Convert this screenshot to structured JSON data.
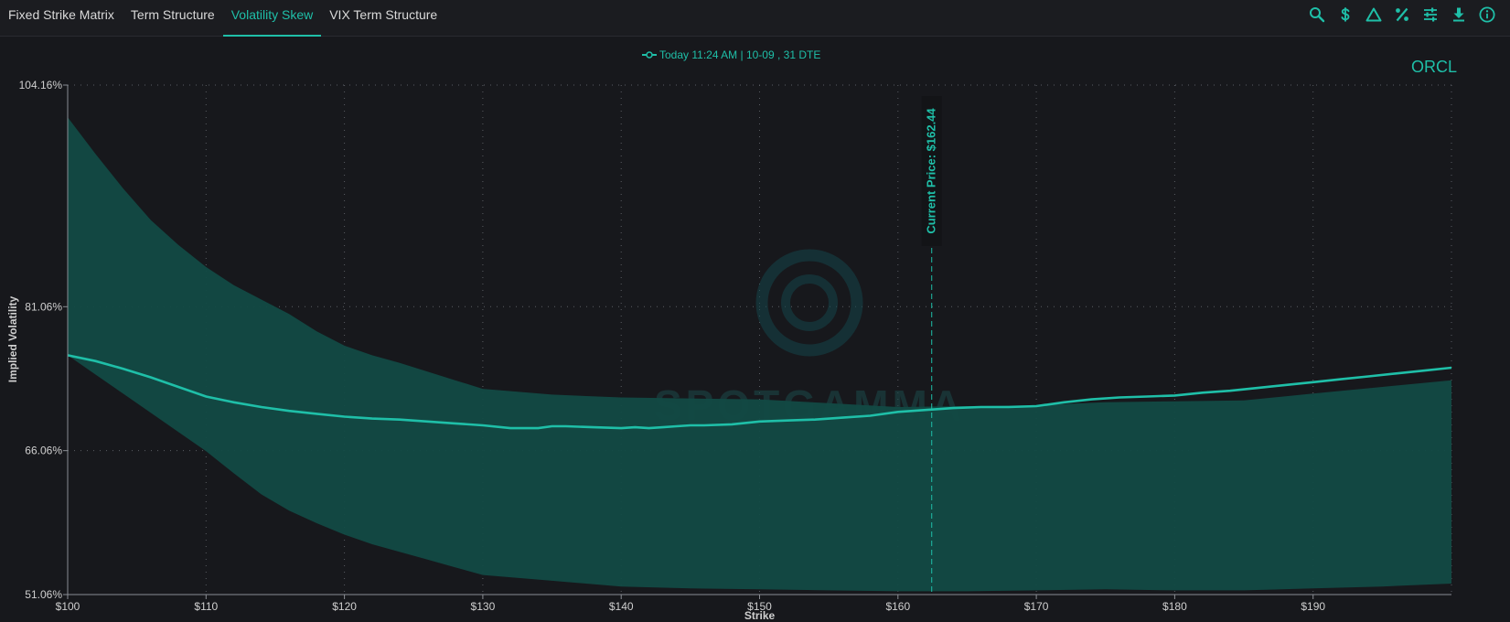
{
  "tabs": [
    {
      "label": "Fixed Strike Matrix",
      "active": false
    },
    {
      "label": "Term Structure",
      "active": false
    },
    {
      "label": "Volatility Skew",
      "active": true
    },
    {
      "label": "VIX Term Structure",
      "active": false
    }
  ],
  "toolbar": {
    "icons": [
      "search-icon",
      "dollar-icon",
      "delta-icon",
      "percent-icon",
      "sliders-icon",
      "download-icon",
      "info-icon"
    ]
  },
  "colors": {
    "accent": "#1fbfa8",
    "band": "#124a45",
    "background": "#17181c"
  },
  "chart_data": {
    "type": "area",
    "symbol": "ORCL",
    "legend": "Today 11:24 AM | 10-09 , 31 DTE",
    "xlabel": "Strike",
    "ylabel": "Implied Volatility",
    "xlim": [
      100,
      200
    ],
    "ylim": [
      51.06,
      104.16
    ],
    "x_ticks": [
      "$100",
      "$110",
      "$120",
      "$130",
      "$140",
      "$150",
      "$160",
      "$170",
      "$180",
      "$190"
    ],
    "y_ticks": [
      "104.16%",
      "81.06%",
      "66.06%",
      "51.06%"
    ],
    "grid": true,
    "watermark": "SPOTGAMMA",
    "current_price": {
      "value": 162.44,
      "label": "Current Price: $162.44"
    },
    "series": [
      {
        "name": "Today 11:24 AM | 10-09 , 31 DTE",
        "x": [
          100,
          102,
          104,
          106,
          108,
          110,
          112,
          114,
          116,
          118,
          120,
          122,
          124,
          126,
          128,
          130,
          132,
          134,
          135,
          136,
          138,
          140,
          141,
          142,
          143,
          144,
          145,
          146,
          148,
          150,
          152,
          154,
          156,
          158,
          160,
          162,
          164,
          166,
          168,
          170,
          172,
          174,
          176,
          178,
          180,
          182,
          184,
          186,
          188,
          190,
          192,
          194,
          196,
          198,
          200
        ],
        "values": [
          76.0,
          75.4,
          74.6,
          73.7,
          72.7,
          71.7,
          71.1,
          70.6,
          70.2,
          69.9,
          69.6,
          69.4,
          69.3,
          69.1,
          68.9,
          68.7,
          68.4,
          68.4,
          68.6,
          68.6,
          68.5,
          68.4,
          68.5,
          68.4,
          68.5,
          68.6,
          68.7,
          68.7,
          68.8,
          69.1,
          69.2,
          69.3,
          69.5,
          69.7,
          70.1,
          70.3,
          70.5,
          70.6,
          70.6,
          70.7,
          71.1,
          71.4,
          71.6,
          71.7,
          71.8,
          72.1,
          72.3,
          72.6,
          72.9,
          73.2,
          73.5,
          73.8,
          74.1,
          74.4,
          74.7
        ]
      }
    ],
    "band": {
      "x": [
        100,
        102,
        104,
        106,
        108,
        110,
        112,
        114,
        116,
        118,
        120,
        122,
        124,
        126,
        128,
        130,
        135,
        140,
        145,
        150,
        155,
        160,
        165,
        170,
        175,
        180,
        185,
        190,
        195,
        200
      ],
      "upper": [
        100.8,
        97.0,
        93.4,
        90.1,
        87.5,
        85.2,
        83.3,
        81.8,
        80.3,
        78.5,
        77.0,
        76.0,
        75.2,
        74.3,
        73.4,
        72.5,
        71.9,
        71.6,
        71.5,
        71.4,
        71.0,
        70.6,
        70.7,
        70.8,
        71.1,
        71.2,
        71.3,
        72.0,
        72.7,
        73.4
      ],
      "lower": [
        76.0,
        74.0,
        72.0,
        70.0,
        68.0,
        66.0,
        63.7,
        61.5,
        59.8,
        58.5,
        57.3,
        56.3,
        55.5,
        54.7,
        53.9,
        53.1,
        52.5,
        51.9,
        51.7,
        51.6,
        51.5,
        51.4,
        51.4,
        51.5,
        51.6,
        51.5,
        51.5,
        51.7,
        51.9,
        52.2
      ]
    }
  }
}
